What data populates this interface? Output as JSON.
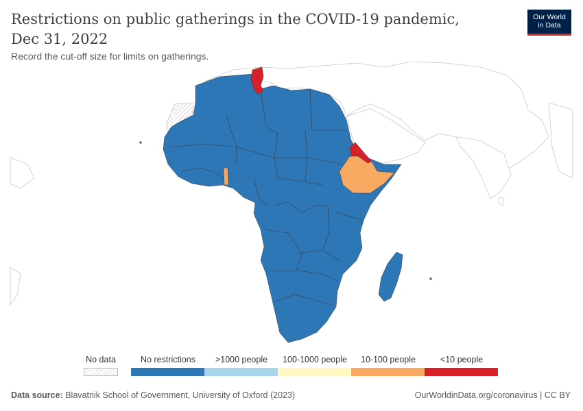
{
  "header": {
    "title": "Restrictions on public gatherings in the COVID-19 pandemic, Dec 31, 2022",
    "subtitle": "Record the cut-off size for limits on gatherings."
  },
  "logo": {
    "line1": "Our World",
    "line2": "in Data"
  },
  "legend": {
    "no_data_label": "No data",
    "categories": [
      {
        "label": "No restrictions",
        "color": "#2e77b7"
      },
      {
        "label": ">1000 people",
        "color": "#a6d4e9"
      },
      {
        "label": "100-1000 people",
        "color": "#fff8c2"
      },
      {
        "label": "10-100 people",
        "color": "#f8aa62"
      },
      {
        "label": "<10 people",
        "color": "#d6202a"
      }
    ]
  },
  "map": {
    "region": "Africa",
    "highlighted_countries": [
      {
        "name": "Tunisia",
        "category": "<10 people"
      },
      {
        "name": "Eritrea",
        "category": "<10 people"
      },
      {
        "name": "Ethiopia",
        "category": "10-100 people"
      },
      {
        "name": "Togo",
        "category": "10-100 people"
      }
    ],
    "default_category": "No restrictions"
  },
  "footer": {
    "source_label": "Data source:",
    "source_text": "Blavatnik School of Government, University of Oxford (2023)",
    "right_text": "OurWorldinData.org/coronavirus | CC BY"
  }
}
